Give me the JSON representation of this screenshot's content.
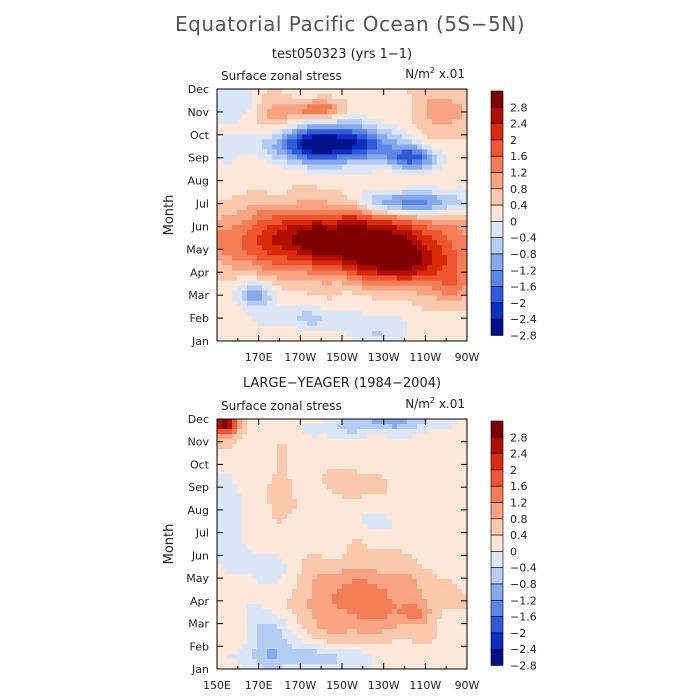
{
  "title": "Equatorial Pacific Ocean (5S−5N)",
  "colorbar_labels": [
    "2.8",
    "2.4",
    "2",
    "1.6",
    "1.2",
    "0.8",
    "0.4",
    "0",
    "−0.4",
    "−0.8",
    "−1.2",
    "−1.6",
    "−2",
    "−2.4",
    "−2.8"
  ],
  "colorbar_colors": [
    "#7f0000",
    "#b20e00",
    "#d92b07",
    "#ef5530",
    "#f57d56",
    "#f8a483",
    "#fac8ad",
    "#fde7d8",
    "#dbe7f7",
    "#b5cdf2",
    "#86a9ec",
    "#5b86e6",
    "#2f5bdb",
    "#0a2fc2",
    "#00128a"
  ],
  "chart_data": [
    {
      "type": "heatmap",
      "title": "test050323 (yrs 1−1)",
      "subtitle_left": "Surface zonal stress",
      "units_prefix": "N/m",
      "units_exp": "2",
      "units_suffix": " x.01",
      "ylabel": "Month",
      "ylim": [
        "Jan",
        "Dec"
      ],
      "xlim": [
        150,
        270
      ],
      "y_ticks": [
        "Dec",
        "Nov",
        "Oct",
        "Sep",
        "Aug",
        "Jul",
        "Jun",
        "May",
        "Apr",
        "Mar",
        "Feb",
        "Jan"
      ],
      "x_ticks": [
        "170E",
        "170W",
        "150W",
        "130W",
        "110W",
        "90W"
      ],
      "x_tick_lons": [
        170,
        190,
        210,
        230,
        250,
        270
      ],
      "field": [
        {
          "lon": 210,
          "month": 4.4,
          "amp": 3.2,
          "wx": 55,
          "wy": 1.4
        },
        {
          "lon": 240,
          "month": 3.2,
          "amp": 1.6,
          "wx": 24,
          "wy": 0.9
        },
        {
          "lon": 262,
          "month": 2.3,
          "amp": 1.0,
          "wx": 10,
          "wy": 0.8
        },
        {
          "lon": 202,
          "month": 8.6,
          "amp": -3.2,
          "wx": 30,
          "wy": 0.8
        },
        {
          "lon": 243,
          "month": 6.0,
          "amp": -2.1,
          "wx": 25,
          "wy": 0.55
        },
        {
          "lon": 244,
          "month": 8.0,
          "amp": -1.8,
          "wx": 13,
          "wy": 0.5
        },
        {
          "lon": 168,
          "month": 2.0,
          "amp": -1.2,
          "wx": 9,
          "wy": 0.55
        },
        {
          "lon": 195,
          "month": 1.0,
          "amp": -0.6,
          "wx": 24,
          "wy": 0.5
        },
        {
          "lon": 228,
          "month": 0.4,
          "amp": -0.7,
          "wx": 10,
          "wy": 0.5
        },
        {
          "lon": 160,
          "month": 10.4,
          "amp": -0.7,
          "wx": 10,
          "wy": 0.8
        },
        {
          "lon": 176,
          "month": 9.3,
          "amp": 0.9,
          "wx": 12,
          "wy": 1.5
        },
        {
          "lon": 198,
          "month": 10.1,
          "amp": 1.5,
          "wx": 12,
          "wy": 0.4
        },
        {
          "lon": 258,
          "month": 9.9,
          "amp": 0.8,
          "wx": 16,
          "wy": 1.4
        }
      ]
    },
    {
      "type": "heatmap",
      "title": "LARGE−YEAGER (1984−2004)",
      "subtitle_left": "Surface zonal stress",
      "units_prefix": "N/m",
      "units_exp": "2",
      "units_suffix": " x.01",
      "ylabel": "Month",
      "ylim": [
        "Jan",
        "Dec"
      ],
      "xlim": [
        150,
        270
      ],
      "y_ticks": [
        "Dec",
        "Nov",
        "Oct",
        "Sep",
        "Aug",
        "Jul",
        "Jun",
        "May",
        "Apr",
        "Mar",
        "Feb",
        "Jan"
      ],
      "x_ticks": [
        "150E",
        "170E",
        "170W",
        "150W",
        "130W",
        "110W",
        "90W"
      ],
      "x_tick_lons": [
        150,
        170,
        190,
        210,
        230,
        250,
        270
      ],
      "field": [
        {
          "lon": 220,
          "month": 3.0,
          "amp": 1.3,
          "wx": 32,
          "wy": 1.7
        },
        {
          "lon": 246,
          "month": 2.5,
          "amp": 0.6,
          "wx": 7,
          "wy": 0.4
        },
        {
          "lon": 154,
          "month": 10.8,
          "amp": 2.6,
          "wx": 6,
          "wy": 0.4
        },
        {
          "lon": 152,
          "month": 10.2,
          "amp": 0.8,
          "wx": 7,
          "wy": 0.7
        },
        {
          "lon": 176,
          "month": 1.3,
          "amp": -0.9,
          "wx": 11,
          "wy": 1.3
        },
        {
          "lon": 200,
          "month": 0.5,
          "amp": -0.8,
          "wx": 30,
          "wy": 0.55
        },
        {
          "lon": 236,
          "month": 10.9,
          "amp": -1.1,
          "wx": 22,
          "wy": 0.45
        },
        {
          "lon": 212,
          "month": 10.6,
          "amp": -0.5,
          "wx": 14,
          "wy": 0.5
        },
        {
          "lon": 154,
          "month": 6.0,
          "amp": -0.4,
          "wx": 8,
          "wy": 3.0
        },
        {
          "lon": 176,
          "month": 4.4,
          "amp": -0.5,
          "wx": 10,
          "wy": 1.3
        },
        {
          "lon": 180,
          "month": 7.5,
          "amp": 0.5,
          "wx": 6,
          "wy": 2.0
        },
        {
          "lon": 216,
          "month": 8.2,
          "amp": 0.5,
          "wx": 17,
          "wy": 0.7
        },
        {
          "lon": 230,
          "month": 6.5,
          "amp": -0.3,
          "wx": 14,
          "wy": 0.4
        }
      ]
    }
  ]
}
